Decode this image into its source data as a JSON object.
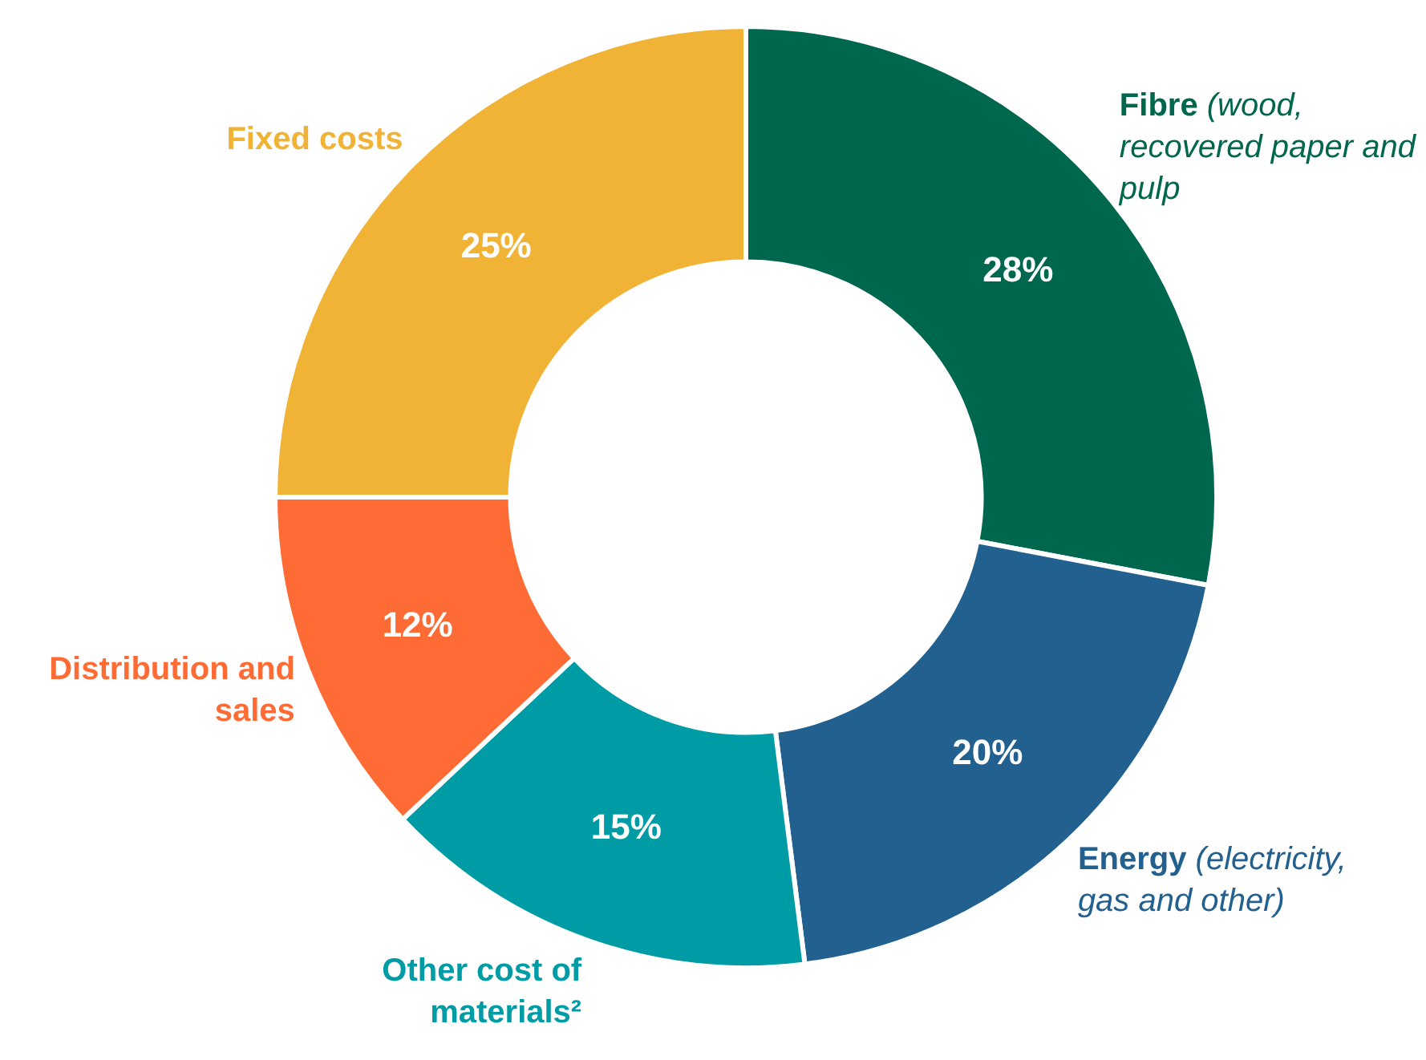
{
  "chart_data": {
    "type": "donut",
    "categories": [
      "Fibre (wood, recovered paper and pulp",
      "Energy (electricity, gas and other)",
      "Other cost of materials²",
      "Distribution and sales",
      "Fixed costs"
    ],
    "values": [
      28,
      20,
      15,
      12,
      25
    ],
    "value_labels": [
      "28%",
      "20%",
      "15%",
      "12%",
      "25%"
    ],
    "colors": [
      "#00674f",
      "#22608f",
      "#009ca6",
      "#ff6b35",
      "#f0b335"
    ],
    "legend": false
  }
}
